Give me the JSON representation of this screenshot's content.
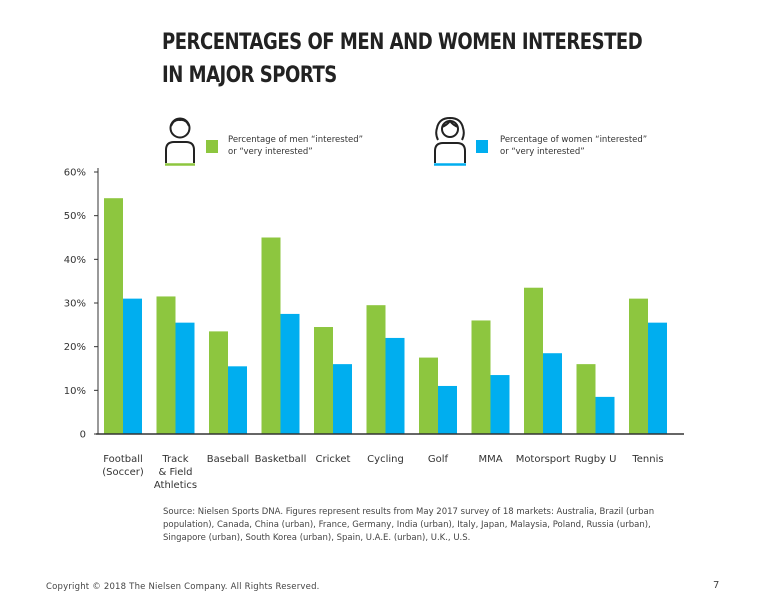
{
  "title_line1": "PERCENTAGES OF MEN AND WOMEN INTERESTED",
  "title_line2": "IN MAJOR SPORTS",
  "legend": {
    "men_line1": "Percentage of men “interested”",
    "men_line2": "or “very interested”",
    "women_line1": "Percentage of women “interested”",
    "women_line2": "or “very interested”"
  },
  "colors": {
    "men": "#8dc63f",
    "women": "#00aeef",
    "axis": "#333333",
    "icon": "#222222"
  },
  "chart_data": {
    "type": "bar",
    "title": "PERCENTAGES OF MEN AND WOMEN INTERESTED IN MAJOR SPORTS",
    "xlabel": "",
    "ylabel": "",
    "ylim": [
      0,
      60
    ],
    "yticks": [
      {
        "value": 0,
        "label": "0"
      },
      {
        "value": 10,
        "label": "10%"
      },
      {
        "value": 20,
        "label": "20%"
      },
      {
        "value": 30,
        "label": "30%"
      },
      {
        "value": 40,
        "label": "40%"
      },
      {
        "value": 50,
        "label": "50%"
      },
      {
        "value": 60,
        "label": "60%"
      }
    ],
    "categories": [
      [
        "Football",
        "(Soccer)"
      ],
      [
        "Track",
        "& Field",
        "Athletics"
      ],
      [
        "Baseball"
      ],
      [
        "Basketball"
      ],
      [
        "Cricket"
      ],
      [
        "Cycling"
      ],
      [
        "Golf"
      ],
      [
        "MMA"
      ],
      [
        "Motorsport"
      ],
      [
        "Rugby U"
      ],
      [
        "Tennis"
      ]
    ],
    "series": [
      {
        "name": "Percentage of men “interested” or “very interested”",
        "key": "men",
        "values": [
          54,
          31.5,
          23.5,
          45,
          24.5,
          29.5,
          17.5,
          26,
          33.5,
          16,
          31
        ]
      },
      {
        "name": "Percentage of women “interested” or “very interested”",
        "key": "women",
        "values": [
          31,
          25.5,
          15.5,
          27.5,
          16,
          22,
          11,
          13.5,
          18.5,
          8.5,
          25.5
        ]
      }
    ],
    "grid": false,
    "legend_position": "top"
  },
  "source_lines": [
    "Source: Nielsen Sports DNA. Figures represent results from May 2017 survey of 18 markets: Australia, Brazil (urban",
    "population), Canada, China (urban), France, Germany, India (urban), Italy, Japan, Malaysia, Poland, Russia (urban),",
    "Singapore (urban), South Korea (urban), Spain, U.A.E. (urban), U.K., U.S."
  ],
  "footer": "Copyright © 2018 The Nielsen Company. All Rights Reserved.",
  "page_number": "7"
}
